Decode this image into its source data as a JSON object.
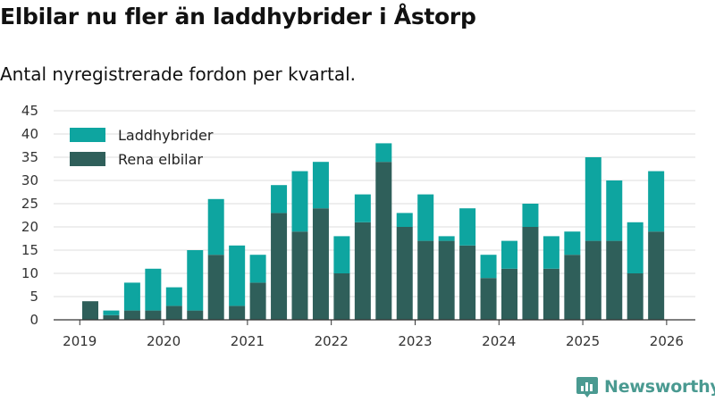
{
  "title": "Elbilar nu fler än laddhybrider i Åstorp",
  "subtitle": "Antal nyregistrerade fordon per kvartal.",
  "brand": "Newsworthy",
  "colors": {
    "phev": "#0ea5a0",
    "bev": "#2f5f5a",
    "grid": "#dddddd",
    "axis": "#333333",
    "brand": "#4a9a91"
  },
  "chart_data": {
    "type": "bar",
    "stacked": true,
    "title": "Elbilar nu fler än laddhybrider i Åstorp",
    "subtitle": "Antal nyregistrerade fordon per kvartal.",
    "ylim": [
      0,
      45
    ],
    "yticks": [
      0,
      5,
      10,
      15,
      20,
      25,
      30,
      35,
      40,
      45
    ],
    "xtick_labels": [
      "2019",
      "2020",
      "2021",
      "2022",
      "2023",
      "2024",
      "2025",
      "2026"
    ],
    "legend_position": "top-left",
    "categories": [
      "2019Q1",
      "2019Q2",
      "2019Q3",
      "2019Q4",
      "2020Q1",
      "2020Q2",
      "2020Q3",
      "2020Q4",
      "2021Q1",
      "2021Q2",
      "2021Q3",
      "2021Q4",
      "2022Q1",
      "2022Q2",
      "2022Q3",
      "2022Q4",
      "2023Q1",
      "2023Q2",
      "2023Q3",
      "2023Q4",
      "2024Q1",
      "2024Q2",
      "2024Q3",
      "2024Q4",
      "2025Q1",
      "2025Q2",
      "2025Q3",
      "2025Q4"
    ],
    "series": [
      {
        "name": "Rena elbilar",
        "color": "#2f5f5a",
        "values": [
          4,
          1,
          2,
          2,
          3,
          2,
          14,
          3,
          8,
          23,
          19,
          24,
          10,
          21,
          34,
          20,
          17,
          17,
          16,
          9,
          11,
          20,
          11,
          14,
          17,
          17,
          10,
          19
        ]
      },
      {
        "name": "Laddhybrider",
        "color": "#0ea5a0",
        "values": [
          0,
          1,
          6,
          9,
          4,
          13,
          12,
          13,
          6,
          6,
          13,
          10,
          8,
          6,
          4,
          3,
          10,
          1,
          8,
          5,
          6,
          5,
          7,
          5,
          18,
          13,
          11,
          13
        ]
      }
    ],
    "legend": [
      "Laddhybrider",
      "Rena elbilar"
    ]
  }
}
